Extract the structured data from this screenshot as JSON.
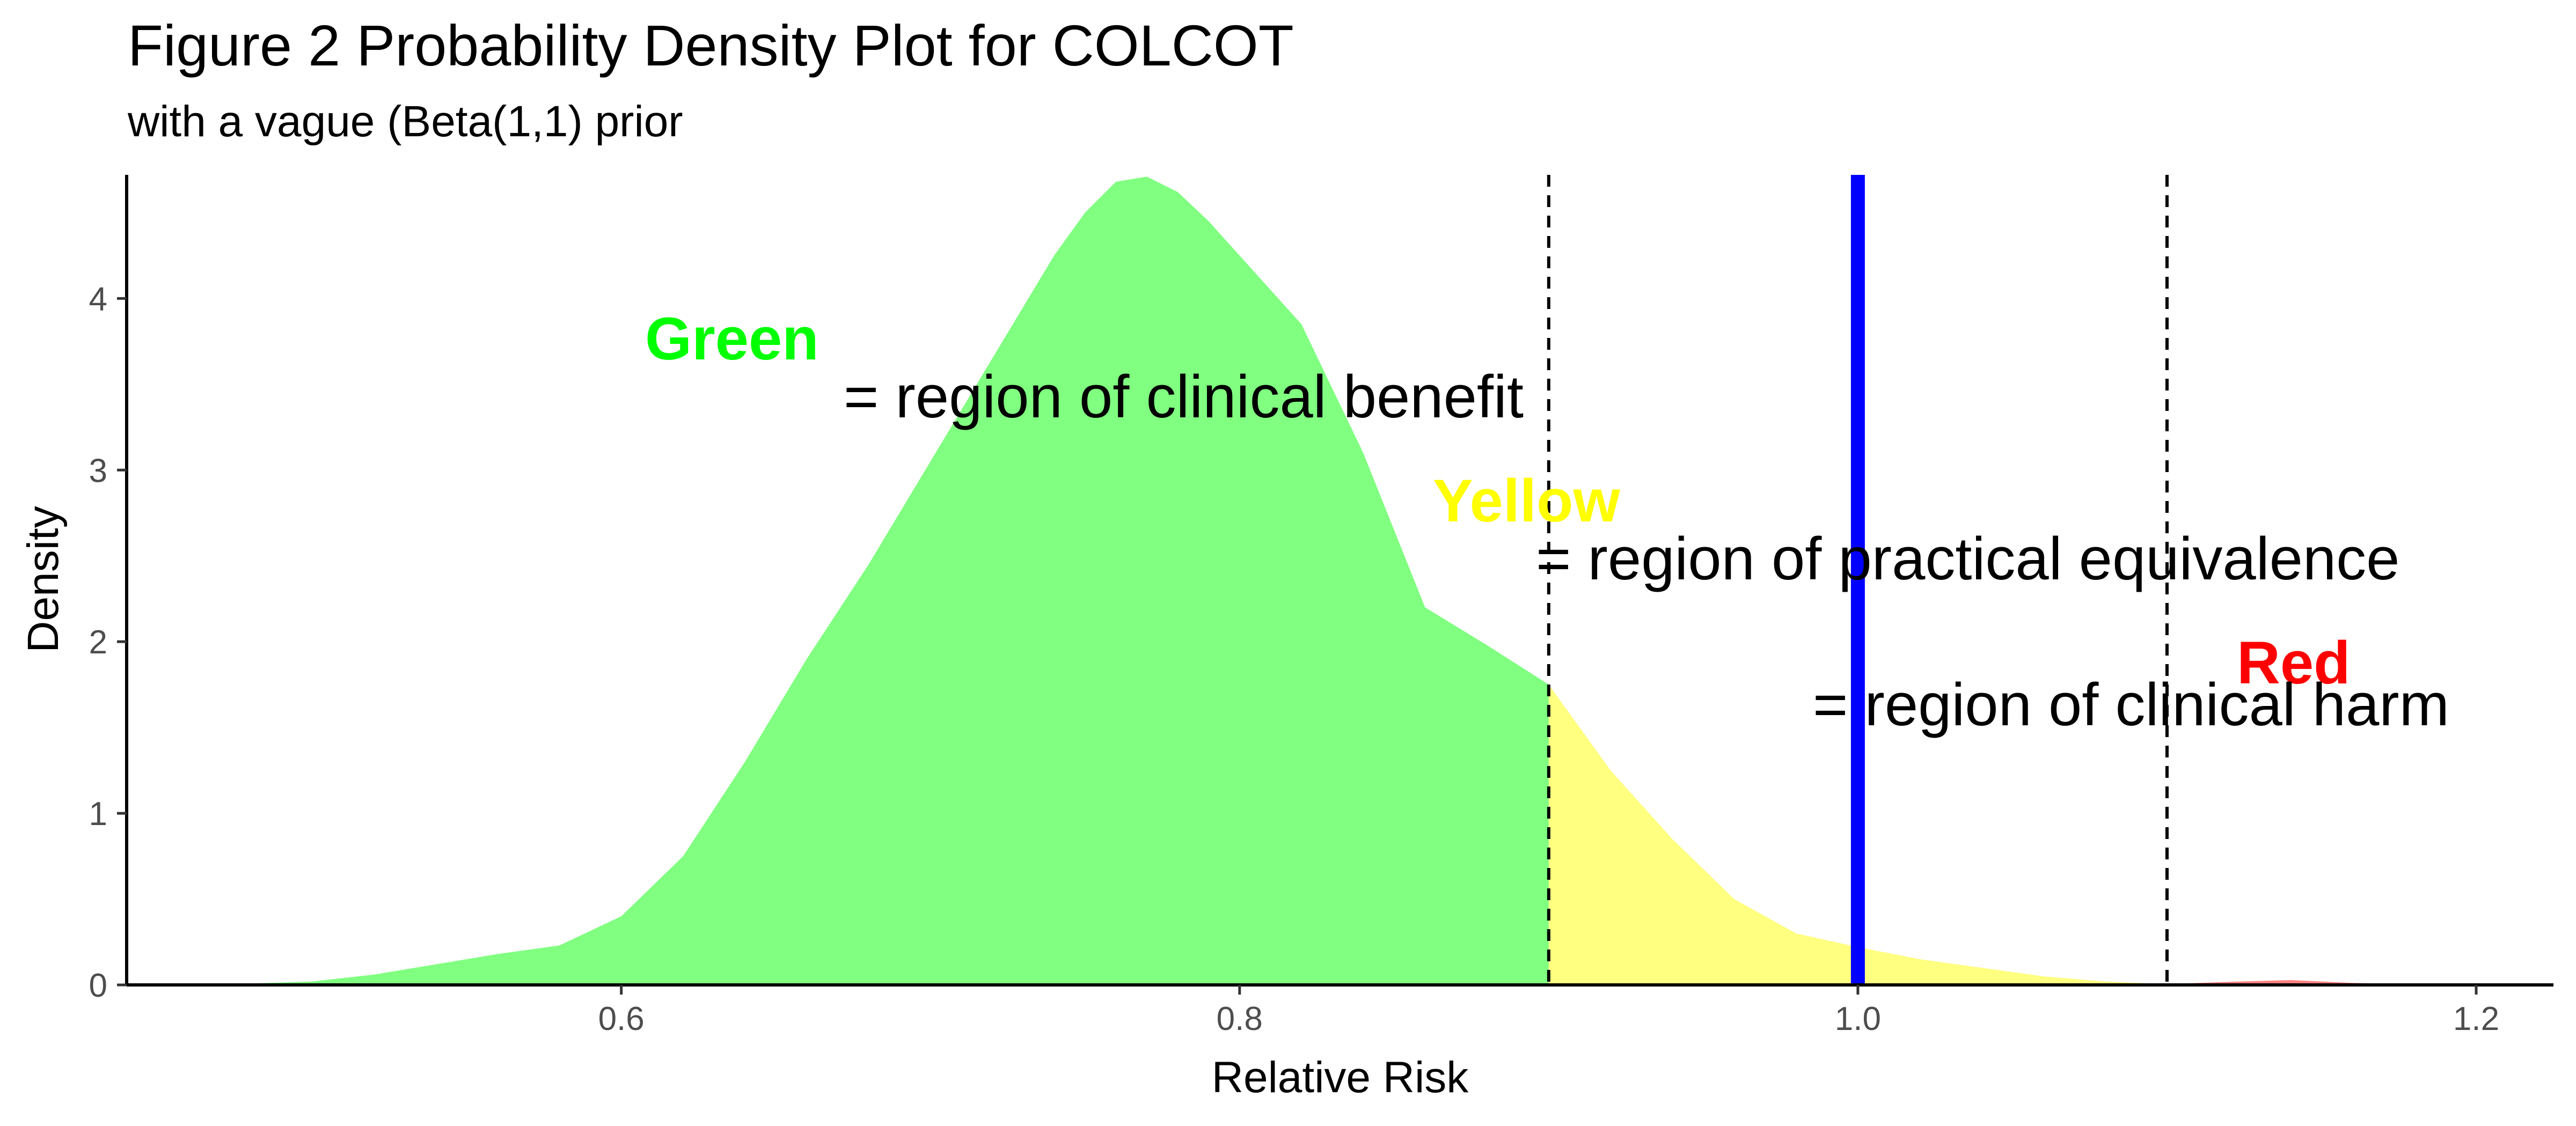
{
  "chart_data": {
    "type": "area",
    "title": "Figure 2 Probability Density Plot for COLCOT",
    "subtitle": "with a vague (Beta(1,1) prior",
    "xlabel": "Relative Risk",
    "ylabel": "Density",
    "xlim": [
      0.44,
      1.225
    ],
    "ylim": [
      0,
      4.72
    ],
    "x_ticks": [
      "0.6",
      "0.8",
      "1.0",
      "1.2"
    ],
    "y_ticks": [
      "0",
      "1",
      "2",
      "3",
      "4"
    ],
    "grid": false,
    "density": {
      "x": [
        0.44,
        0.46,
        0.48,
        0.5,
        0.52,
        0.54,
        0.56,
        0.58,
        0.6,
        0.62,
        0.64,
        0.66,
        0.68,
        0.7,
        0.72,
        0.74,
        0.75,
        0.76,
        0.77,
        0.78,
        0.79,
        0.8,
        0.82,
        0.84,
        0.86,
        0.88,
        0.9,
        0.92,
        0.94,
        0.96,
        0.98,
        1.0,
        1.02,
        1.04,
        1.06,
        1.08,
        1.1,
        1.12,
        1.14,
        1.16,
        1.18,
        1.2,
        1.225
      ],
      "y": [
        0.0,
        0.003,
        0.008,
        0.02,
        0.06,
        0.12,
        0.18,
        0.23,
        0.4,
        0.75,
        1.3,
        1.9,
        2.45,
        3.05,
        3.65,
        4.25,
        4.5,
        4.68,
        4.71,
        4.62,
        4.45,
        4.25,
        3.85,
        3.1,
        2.2,
        1.98,
        1.75,
        1.25,
        0.85,
        0.5,
        0.3,
        0.22,
        0.15,
        0.1,
        0.05,
        0.02,
        0.005,
        0.018,
        0.028,
        0.012,
        0.003,
        0.0,
        0.0
      ]
    },
    "regions": [
      {
        "label": "Green",
        "description": "= region of clinical benefit",
        "from": 0.44,
        "to": 0.9,
        "color": "#80ff80",
        "label_color": "#00ff00"
      },
      {
        "label": "Yellow",
        "description": "= region of practical equivalence",
        "from": 0.9,
        "to": 1.1,
        "color": "#ffff80",
        "label_color": "#ffff00"
      },
      {
        "label": "Red",
        "description": "= region of clinical harm",
        "from": 1.1,
        "to": 1.225,
        "color": "#ff8080",
        "label_color": "#ff0000"
      }
    ],
    "dashed_lines": [
      0.9,
      1.1
    ],
    "reference_line": {
      "x": 1.0,
      "color": "#0000ff"
    }
  }
}
